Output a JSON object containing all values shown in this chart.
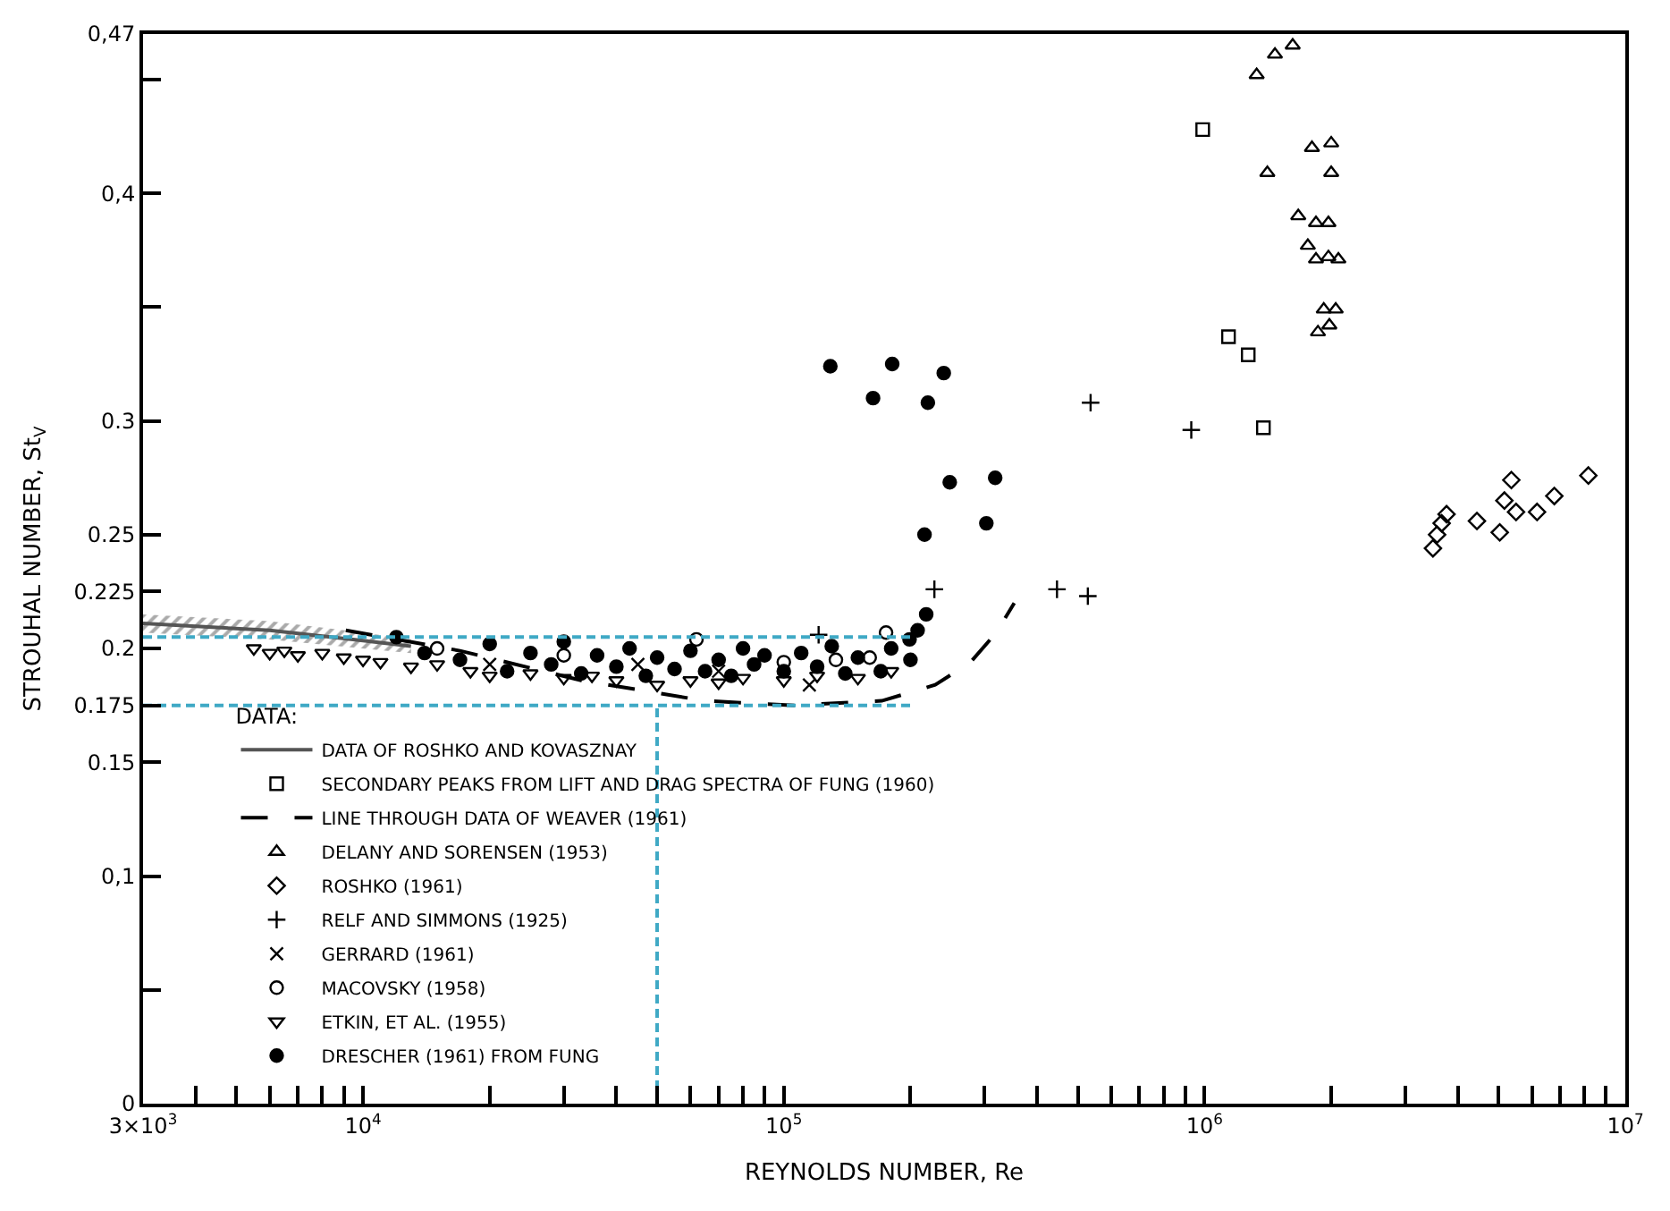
{
  "chart_data": {
    "type": "scatter",
    "xlabel": "REYNOLDS NUMBER, Re",
    "ylabel": "STROUHAL NUMBER, St$_{V}$",
    "legend_title": "DATA:",
    "legend": "bottom left",
    "log": "x",
    "xlim": [
      3000,
      10000000
    ],
    "ylim": [
      0,
      0.47
    ],
    "xticks": [
      {
        "value": 3000,
        "label": "3×10$^{3}$"
      },
      {
        "value": 4000,
        "label": null
      },
      {
        "value": 5000,
        "label": null
      },
      {
        "value": 6000,
        "label": null
      },
      {
        "value": 7000,
        "label": null
      },
      {
        "value": 8000,
        "label": null
      },
      {
        "value": 9000,
        "label": null
      },
      {
        "value": 10000,
        "label": "10$^{4}$"
      },
      {
        "value": 20000,
        "label": null
      },
      {
        "value": 30000,
        "label": null
      },
      {
        "value": 40000,
        "label": null
      },
      {
        "value": 50000,
        "label": null
      },
      {
        "value": 60000,
        "label": null
      },
      {
        "value": 70000,
        "label": null
      },
      {
        "value": 80000,
        "label": null
      },
      {
        "value": 90000,
        "label": null
      },
      {
        "value": 100000,
        "label": "10$^{5}$"
      },
      {
        "value": 200000,
        "label": null
      },
      {
        "value": 300000,
        "label": null
      },
      {
        "value": 400000,
        "label": null
      },
      {
        "value": 500000,
        "label": null
      },
      {
        "value": 600000,
        "label": null
      },
      {
        "value": 700000,
        "label": null
      },
      {
        "value": 800000,
        "label": null
      },
      {
        "value": 900000,
        "label": null
      },
      {
        "value": 1000000,
        "label": "10$^{6}$"
      },
      {
        "value": 2000000,
        "label": null
      },
      {
        "value": 3000000,
        "label": null
      },
      {
        "value": 4000000,
        "label": null
      },
      {
        "value": 5000000,
        "label": null
      },
      {
        "value": 6000000,
        "label": null
      },
      {
        "value": 7000000,
        "label": null
      },
      {
        "value": 8000000,
        "label": null
      },
      {
        "value": 9000000,
        "label": null
      },
      {
        "value": 10000000,
        "label": "10$^{7}$"
      }
    ],
    "yticks": [
      0,
      {
        "value": 0.05,
        "label": null
      },
      {
        "value": 0.1,
        "label": "0,1"
      },
      0.15,
      0.175,
      0.2,
      0.225,
      0.25,
      0.3,
      {
        "value": 0.35,
        "label": null
      },
      {
        "value": 0.4,
        "label": "0,4"
      },
      {
        "value": 0.45,
        "label": null
      },
      {
        "value": 0.47,
        "label": "0,47"
      }
    ],
    "series": [
      {
        "type": "line",
        "name": "DATA OF ROSHKO AND KOVASZNAY",
        "color": "#555555",
        "marker": "none",
        "x": [
          3000,
          6000,
          10000,
          13000
        ],
        "values": [
          0.211,
          0.208,
          0.2035,
          0.201
        ],
        "lower": [
          0.207,
          0.204,
          0.2,
          0.198
        ],
        "upper": [
          0.215,
          0.212,
          0.207,
          0.204
        ]
      },
      {
        "name": "SECONDARY PEAKS FROM LIFT AND DRAG SPECTRA OF FUNG (1960)",
        "color": "#000000",
        "marker": "square-open",
        "x": [
          990000,
          1140000,
          1270000,
          1380000
        ],
        "values": [
          0.428,
          0.337,
          0.329,
          0.297
        ]
      },
      {
        "type": "line",
        "name": "LINE THROUGH DATA OF WEAVER (1961)",
        "color": "#000000",
        "marker": "none",
        "line_style": "longdash",
        "x": [
          9100,
          17000,
          33000,
          65000,
          106000,
          171000,
          229000,
          278000,
          320000,
          353000
        ],
        "values": [
          0.208,
          0.199,
          0.186,
          0.177,
          0.175,
          0.177,
          0.184,
          0.194,
          0.207,
          0.22
        ]
      },
      {
        "name": "DELANY AND SORENSEN (1953)",
        "color": "#000000",
        "marker": "triangle-up-open",
        "x": [
          1330000,
          1470000,
          1620000,
          1800000,
          2000000,
          1410000,
          2000000,
          1670000,
          1840000,
          1970000,
          1760000,
          1840000,
          1970000,
          2080000,
          1920000,
          2050000,
          1860000,
          1980000
        ],
        "values": [
          0.452,
          0.461,
          0.465,
          0.42,
          0.422,
          0.409,
          0.409,
          0.39,
          0.387,
          0.387,
          0.377,
          0.371,
          0.372,
          0.371,
          0.349,
          0.349,
          0.339,
          0.342
        ]
      },
      {
        "name": "ROSHKO (1961)",
        "color": "#000000",
        "marker": "diamond-open",
        "x": [
          3490000,
          3570000,
          3660000,
          3760000,
          4440000,
          5030000,
          5160000,
          5360000,
          5500000,
          6170000,
          6780000,
          8170000
        ],
        "values": [
          0.244,
          0.25,
          0.255,
          0.259,
          0.256,
          0.251,
          0.265,
          0.274,
          0.26,
          0.26,
          0.267,
          0.276
        ]
      },
      {
        "name": "RELF AND SIMMONS (1925)",
        "color": "#000000",
        "marker": "cross",
        "x": [
          121000,
          228000,
          446000,
          528000,
          536000,
          930000
        ],
        "values": [
          0.206,
          0.226,
          0.226,
          0.223,
          0.308,
          0.296
        ]
      },
      {
        "name": "GERRARD (1961)",
        "color": "#000000",
        "marker": "x",
        "x": [
          20000,
          45000,
          70000,
          115000
        ],
        "values": [
          0.193,
          0.193,
          0.19,
          0.184
        ]
      },
      {
        "name": "MACOVSKY (1958)",
        "color": "#000000",
        "marker": "circle-open",
        "x": [
          15000,
          30000,
          62000,
          100000,
          133000,
          160000,
          175000
        ],
        "values": [
          0.2,
          0.197,
          0.204,
          0.194,
          0.195,
          0.196,
          0.207
        ]
      },
      {
        "name": "ETKIN, ET AL. (1955)",
        "color": "#000000",
        "marker": "triangle-down-open",
        "x": [
          5500,
          6000,
          6500,
          7000,
          8000,
          9000,
          10000,
          11000,
          13000,
          15000,
          18000,
          20000,
          25000,
          30000,
          35000,
          40000,
          50000,
          60000,
          70000,
          80000,
          100000,
          120000,
          150000,
          180000
        ],
        "values": [
          0.2,
          0.198,
          0.199,
          0.197,
          0.198,
          0.196,
          0.195,
          0.194,
          0.192,
          0.193,
          0.19,
          0.188,
          0.189,
          0.187,
          0.188,
          0.186,
          0.184,
          0.186,
          0.185,
          0.187,
          0.186,
          0.188,
          0.187,
          0.19
        ]
      },
      {
        "name": "DRESCHER (1961) FROM FUNG",
        "color": "#000000",
        "marker": "circle",
        "x": [
          12000,
          14000,
          17000,
          20000,
          22000,
          25000,
          28000,
          30000,
          33000,
          36000,
          40000,
          43000,
          47000,
          50000,
          55000,
          60000,
          65000,
          70000,
          75000,
          80000,
          85000,
          90000,
          100000,
          110000,
          120000,
          130000,
          140000,
          150000,
          170000,
          180000,
          200000,
          199000,
          208000,
          218000,
          129000,
          181000,
          240000,
          163000,
          220000,
          248000,
          318000,
          303000,
          216000
        ],
        "values": [
          0.205,
          0.198,
          0.195,
          0.202,
          0.19,
          0.198,
          0.193,
          0.203,
          0.189,
          0.197,
          0.192,
          0.2,
          0.188,
          0.196,
          0.191,
          0.199,
          0.19,
          0.195,
          0.188,
          0.2,
          0.193,
          0.197,
          0.19,
          0.198,
          0.192,
          0.201,
          0.189,
          0.196,
          0.19,
          0.2,
          0.195,
          0.204,
          0.208,
          0.215,
          0.324,
          0.325,
          0.321,
          0.31,
          0.308,
          0.273,
          0.275,
          0.255,
          0.25
        ]
      },
      {
        "type": "line",
        "color": "#3fa9c5",
        "marker": "none",
        "line_style": "dashed",
        "x": [
          3000,
          200000
        ],
        "values": [
          0.205,
          0.205
        ]
      },
      {
        "type": "line",
        "color": "#3fa9c5",
        "marker": "none",
        "line_style": "dashed",
        "x": [
          3000,
          200000
        ],
        "values": [
          0.175,
          0.175
        ]
      },
      {
        "type": "line",
        "color": "#3fa9c5",
        "marker": "none",
        "line_style": "dashed",
        "x": [
          50000,
          50000
        ],
        "values": [
          0,
          0.175
        ]
      }
    ]
  }
}
